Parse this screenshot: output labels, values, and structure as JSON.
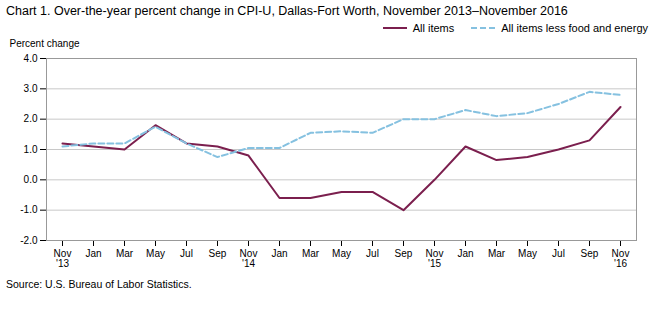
{
  "chart_data": {
    "type": "line",
    "title": "Chart 1. Over-the-year percent change in CPI-U, Dallas-Fort Worth, November 2013–November 2016",
    "y_label": "Percent change",
    "source": "Source: U.S. Bureau of Labor Statistics.",
    "categories": [
      "Nov\n'13",
      "Jan",
      "Mar",
      "May",
      "Jul",
      "Sep",
      "Nov\n'14",
      "Jan",
      "Mar",
      "May",
      "Jul",
      "Sep",
      "Nov\n'15",
      "Jan",
      "Mar",
      "May",
      "Jul",
      "Sep",
      "Nov\n'16"
    ],
    "series": [
      {
        "name": "All items",
        "color": "#7B1F4E",
        "line_style": "solid",
        "values": [
          1.2,
          1.1,
          1.0,
          1.8,
          1.2,
          1.1,
          0.8,
          -0.6,
          -0.6,
          -0.4,
          -0.4,
          -1.0,
          0.0,
          1.1,
          0.65,
          0.75,
          1.0,
          1.3,
          2.4
        ]
      },
      {
        "name": "All items less food and energy",
        "color": "#85C1E0",
        "line_style": "dashed",
        "values": [
          1.1,
          1.2,
          1.2,
          1.75,
          1.2,
          0.75,
          1.05,
          1.05,
          1.55,
          1.6,
          1.55,
          2.0,
          2.0,
          2.3,
          2.1,
          2.2,
          2.5,
          2.9,
          2.8
        ]
      }
    ],
    "ylim": [
      -2.0,
      4.0
    ],
    "yticks": [
      {
        "value": -2.0,
        "label": "-2.0"
      },
      {
        "value": -1.0,
        "label": "-1.0"
      },
      {
        "value": 0.0,
        "label": "0.0"
      },
      {
        "value": 1.0,
        "label": "1.0"
      },
      {
        "value": 2.0,
        "label": "2.0"
      },
      {
        "value": 3.0,
        "label": "3.0"
      },
      {
        "value": 4.0,
        "label": "4.0"
      }
    ],
    "grid": true,
    "legend": "upper right"
  }
}
